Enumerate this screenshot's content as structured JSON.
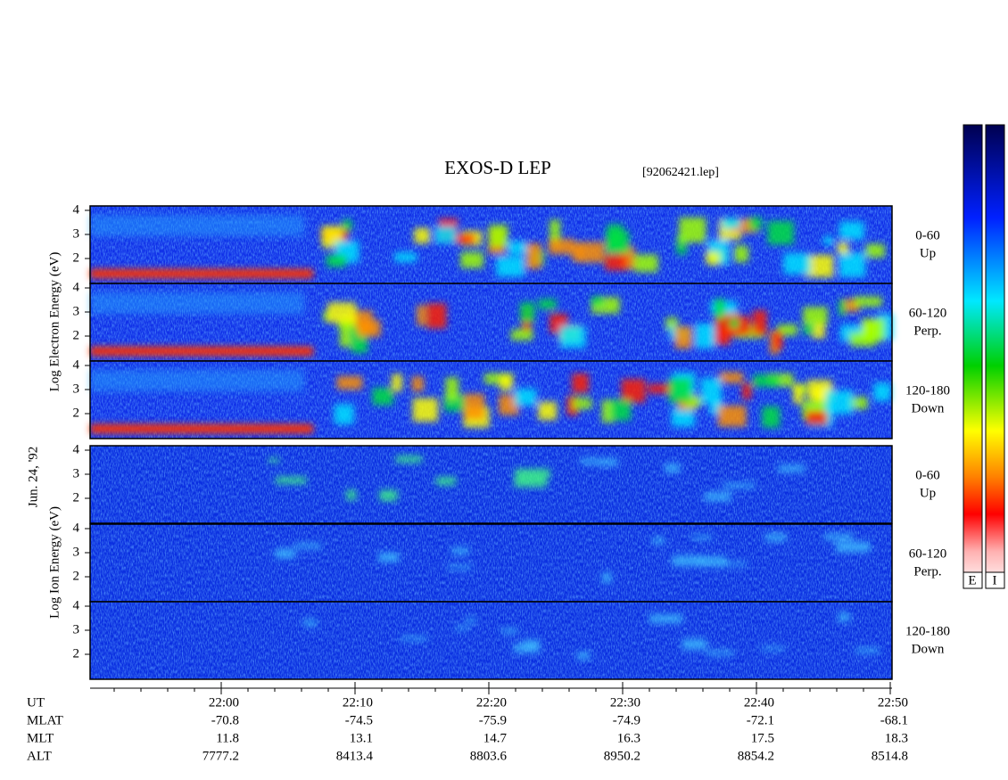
{
  "header": {
    "title": "EXOS-D LEP",
    "file": "[92062421.lep]"
  },
  "date": "Jun. 24, '92",
  "electron_axis_label": "Log Electron Energy (eV)",
  "ion_axis_label": "Log Ion Energy (eV)",
  "panels": [
    {
      "yticks": [
        2,
        3,
        4
      ],
      "angle": "0-60",
      "direction": "Up"
    },
    {
      "yticks": [
        2,
        3,
        4
      ],
      "angle": "60-120",
      "direction": "Perp."
    },
    {
      "yticks": [
        2,
        3,
        4
      ],
      "angle": "120-180",
      "direction": "Down"
    },
    {
      "yticks": [
        2,
        3,
        4
      ],
      "angle": "0-60",
      "direction": "Up"
    },
    {
      "yticks": [
        2,
        3,
        4
      ],
      "angle": "60-120",
      "direction": "Perp."
    },
    {
      "yticks": [
        2,
        3,
        4
      ],
      "angle": "120-180",
      "direction": "Down"
    }
  ],
  "colorbar_labels": [
    "E",
    "I"
  ],
  "orbit": {
    "rows": [
      {
        "name": "UT",
        "values": [
          "22:00",
          "22:10",
          "22:20",
          "22:30",
          "22:40",
          "22:50"
        ]
      },
      {
        "name": "MLAT",
        "values": [
          "-70.8",
          "-74.5",
          "-75.9",
          "-74.9",
          "-72.1",
          "-68.1"
        ]
      },
      {
        "name": "MLT",
        "values": [
          "11.8",
          "13.1",
          "14.7",
          "16.3",
          "17.5",
          "18.3"
        ]
      },
      {
        "name": "ALT",
        "values": [
          "7777.2",
          "8413.4",
          "8803.6",
          "8950.2",
          "8854.2",
          "8514.8"
        ]
      }
    ]
  }
}
